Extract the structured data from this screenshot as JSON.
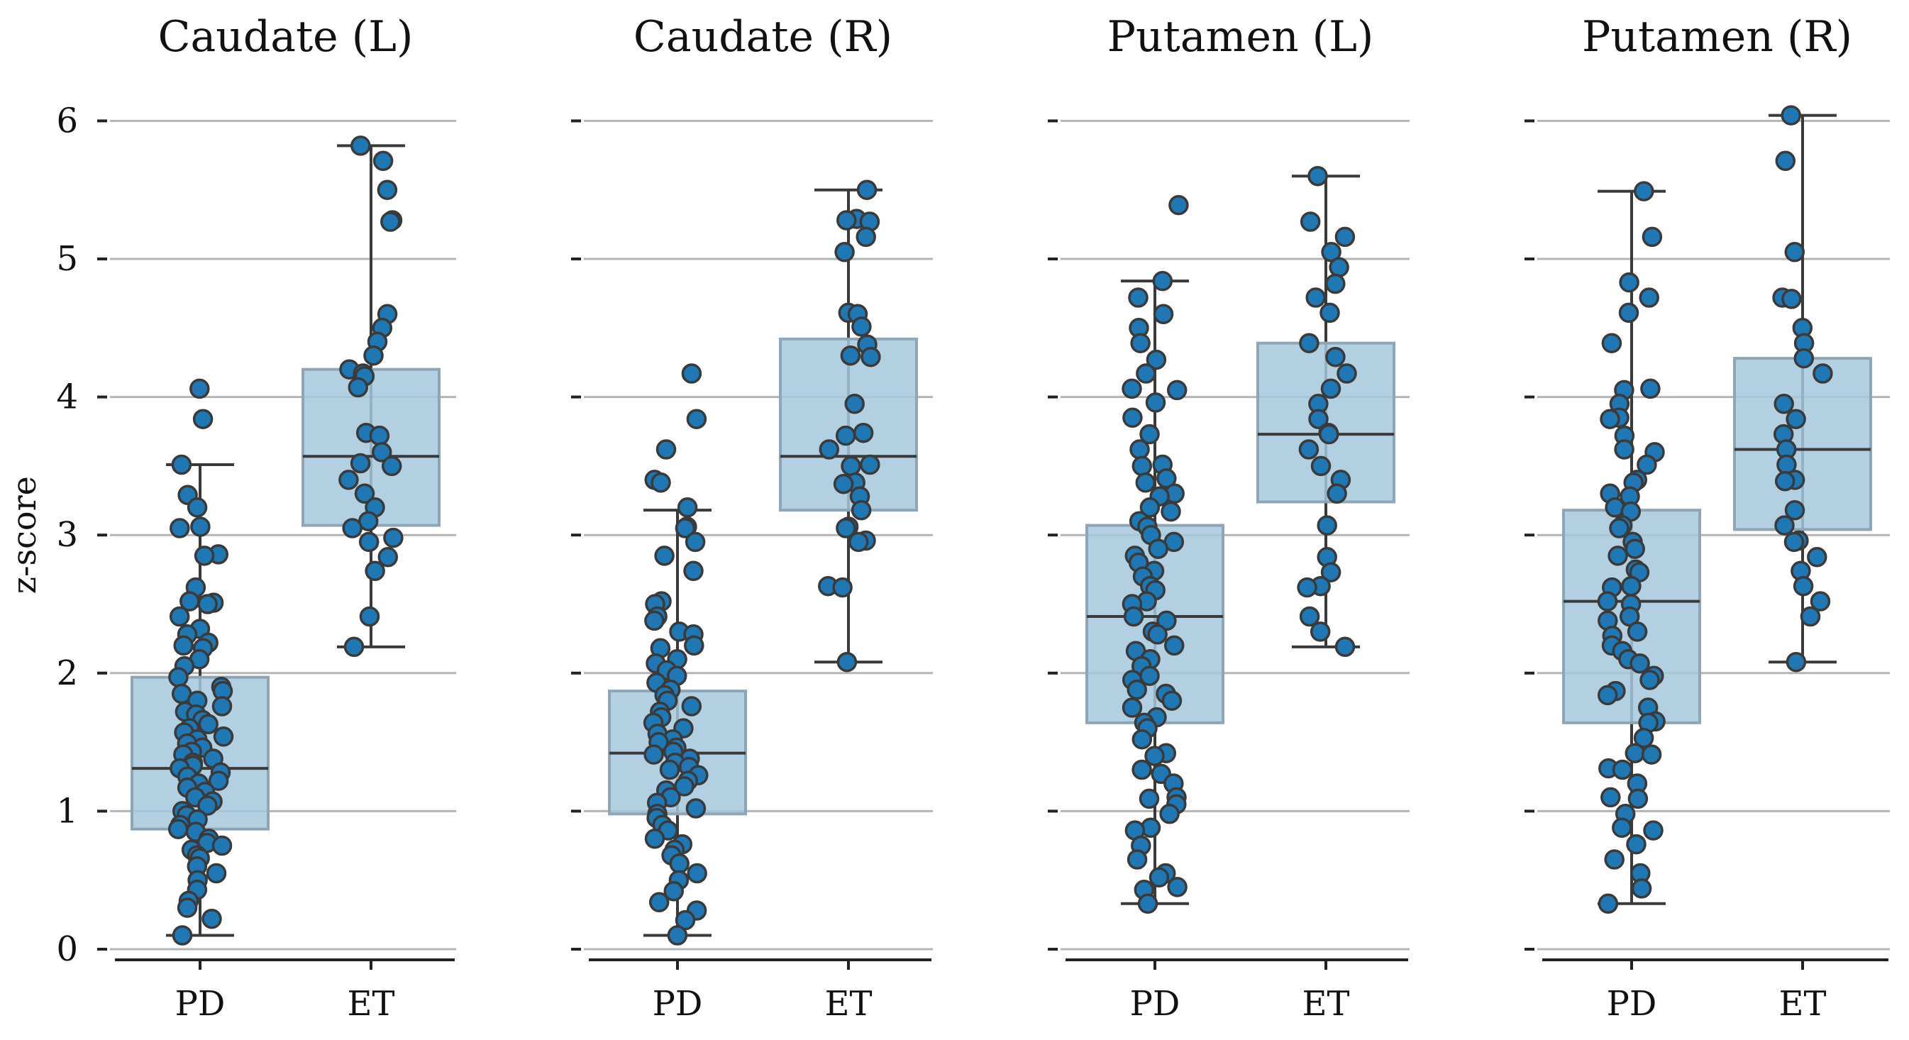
{
  "chart_data": {
    "type": "box+strip",
    "ylabel": "z-score",
    "ylim": [
      0,
      6
    ],
    "yticks": [
      0,
      1,
      2,
      3,
      4,
      5,
      6
    ],
    "grid": "horizontal",
    "categories": [
      "PD",
      "ET"
    ],
    "colors": {
      "box": "#a6c8de",
      "box_edge": "#8ea5b5",
      "point": "#1f77b4",
      "point_edge": "#3a3a3a",
      "line": "#3a3a3a",
      "grid": "#b5b5b5"
    },
    "panels": [
      {
        "title": "Caudate (L)",
        "groups": [
          {
            "name": "PD",
            "stats": {
              "min": 0.1,
              "q1": 0.87,
              "median": 1.31,
              "q3": 1.97,
              "max": 3.51
            },
            "values": [
              4.06,
              3.84,
              3.51,
              3.29,
              3.2,
              3.06,
              3.05,
              2.86,
              2.85,
              2.62,
              2.52,
              2.51,
              2.5,
              2.41,
              2.32,
              2.28,
              2.22,
              2.2,
              2.18,
              2.1,
              2.05,
              1.97,
              1.9,
              1.87,
              1.85,
              1.8,
              1.76,
              1.72,
              1.7,
              1.66,
              1.63,
              1.6,
              1.57,
              1.54,
              1.52,
              1.49,
              1.46,
              1.43,
              1.41,
              1.38,
              1.35,
              1.33,
              1.31,
              1.28,
              1.25,
              1.22,
              1.2,
              1.17,
              1.14,
              1.1,
              1.07,
              1.04,
              1.0,
              0.97,
              0.94,
              0.9,
              0.87,
              0.85,
              0.8,
              0.77,
              0.75,
              0.72,
              0.68,
              0.66,
              0.6,
              0.55,
              0.5,
              0.43,
              0.35,
              0.3,
              0.22,
              0.1
            ]
          },
          {
            "name": "ET",
            "stats": {
              "min": 2.19,
              "q1": 3.07,
              "median": 3.57,
              "q3": 4.2,
              "max": 5.82
            },
            "values": [
              5.82,
              5.71,
              5.5,
              5.28,
              5.27,
              4.6,
              4.5,
              4.4,
              4.3,
              4.2,
              4.17,
              4.15,
              4.07,
              3.74,
              3.72,
              3.6,
              3.52,
              3.5,
              3.4,
              3.3,
              3.2,
              3.1,
              3.05,
              2.98,
              2.95,
              2.84,
              2.74,
              2.41,
              2.19
            ]
          }
        ]
      },
      {
        "title": "Caudate (R)",
        "groups": [
          {
            "name": "PD",
            "stats": {
              "min": 0.1,
              "q1": 0.98,
              "median": 1.42,
              "q3": 1.87,
              "max": 3.18
            },
            "values": [
              4.17,
              3.84,
              3.62,
              3.4,
              3.38,
              3.2,
              3.06,
              3.05,
              2.95,
              2.85,
              2.74,
              2.52,
              2.5,
              2.41,
              2.38,
              2.3,
              2.28,
              2.2,
              2.18,
              2.1,
              2.07,
              2.02,
              1.98,
              1.93,
              1.88,
              1.84,
              1.8,
              1.76,
              1.72,
              1.68,
              1.64,
              1.6,
              1.56,
              1.52,
              1.5,
              1.46,
              1.43,
              1.41,
              1.38,
              1.35,
              1.32,
              1.3,
              1.26,
              1.22,
              1.18,
              1.15,
              1.1,
              1.06,
              1.02,
              0.98,
              0.95,
              0.9,
              0.86,
              0.8,
              0.76,
              0.72,
              0.68,
              0.62,
              0.55,
              0.5,
              0.42,
              0.34,
              0.28,
              0.21,
              0.1
            ]
          },
          {
            "name": "ET",
            "stats": {
              "min": 2.08,
              "q1": 3.18,
              "median": 3.57,
              "q3": 4.42,
              "max": 5.5
            },
            "values": [
              5.5,
              5.29,
              5.28,
              5.27,
              5.16,
              5.05,
              4.61,
              4.6,
              4.51,
              4.38,
              4.3,
              4.29,
              3.95,
              3.74,
              3.72,
              3.62,
              3.51,
              3.5,
              3.38,
              3.37,
              3.28,
              3.18,
              3.06,
              3.05,
              2.96,
              2.95,
              2.63,
              2.62,
              2.08
            ]
          }
        ]
      },
      {
        "title": "Putamen (L)",
        "groups": [
          {
            "name": "PD",
            "stats": {
              "min": 0.33,
              "q1": 1.64,
              "median": 2.41,
              "q3": 3.07,
              "max": 4.84
            },
            "values": [
              5.39,
              4.84,
              4.72,
              4.6,
              4.5,
              4.39,
              4.27,
              4.17,
              4.06,
              4.05,
              3.96,
              3.85,
              3.73,
              3.62,
              3.51,
              3.5,
              3.41,
              3.38,
              3.3,
              3.28,
              3.2,
              3.17,
              3.1,
              3.06,
              3.0,
              2.95,
              2.9,
              2.85,
              2.8,
              2.74,
              2.7,
              2.63,
              2.6,
              2.52,
              2.5,
              2.41,
              2.38,
              2.3,
              2.28,
              2.2,
              2.16,
              2.1,
              2.05,
              1.98,
              1.95,
              1.88,
              1.85,
              1.8,
              1.75,
              1.68,
              1.64,
              1.6,
              1.52,
              1.42,
              1.4,
              1.3,
              1.27,
              1.2,
              1.1,
              1.09,
              1.05,
              0.98,
              0.88,
              0.86,
              0.75,
              0.65,
              0.55,
              0.52,
              0.45,
              0.43,
              0.33
            ]
          },
          {
            "name": "ET",
            "stats": {
              "min": 2.19,
              "q1": 3.24,
              "median": 3.73,
              "q3": 4.39,
              "max": 5.6
            },
            "values": [
              5.6,
              5.27,
              5.16,
              5.05,
              4.94,
              4.82,
              4.72,
              4.61,
              4.39,
              4.29,
              4.17,
              4.06,
              3.95,
              3.84,
              3.74,
              3.73,
              3.62,
              3.5,
              3.4,
              3.3,
              3.07,
              2.84,
              2.73,
              2.63,
              2.62,
              2.41,
              2.3,
              2.19
            ]
          }
        ]
      },
      {
        "title": "Putamen (R)",
        "groups": [
          {
            "name": "PD",
            "stats": {
              "min": 0.33,
              "q1": 1.64,
              "median": 2.52,
              "q3": 3.18,
              "max": 5.49
            },
            "values": [
              5.49,
              5.16,
              4.83,
              4.72,
              4.61,
              4.39,
              4.06,
              4.05,
              3.95,
              3.85,
              3.84,
              3.72,
              3.62,
              3.6,
              3.51,
              3.4,
              3.38,
              3.3,
              3.28,
              3.2,
              3.17,
              3.07,
              3.05,
              2.95,
              2.9,
              2.85,
              2.75,
              2.73,
              2.63,
              2.62,
              2.52,
              2.5,
              2.41,
              2.38,
              2.3,
              2.27,
              2.2,
              2.16,
              2.1,
              2.07,
              1.98,
              1.95,
              1.87,
              1.84,
              1.75,
              1.65,
              1.64,
              1.53,
              1.42,
              1.41,
              1.31,
              1.3,
              1.2,
              1.1,
              1.09,
              0.98,
              0.88,
              0.86,
              0.76,
              0.65,
              0.55,
              0.44,
              0.33
            ]
          },
          {
            "name": "ET",
            "stats": {
              "min": 2.08,
              "q1": 3.04,
              "median": 3.62,
              "q3": 4.28,
              "max": 6.04
            },
            "values": [
              6.04,
              5.71,
              5.05,
              4.72,
              4.71,
              4.5,
              4.39,
              4.28,
              4.17,
              3.95,
              3.84,
              3.73,
              3.62,
              3.51,
              3.4,
              3.39,
              3.18,
              3.07,
              2.96,
              2.95,
              2.84,
              2.74,
              2.63,
              2.52,
              2.41,
              2.08
            ]
          }
        ]
      }
    ]
  }
}
